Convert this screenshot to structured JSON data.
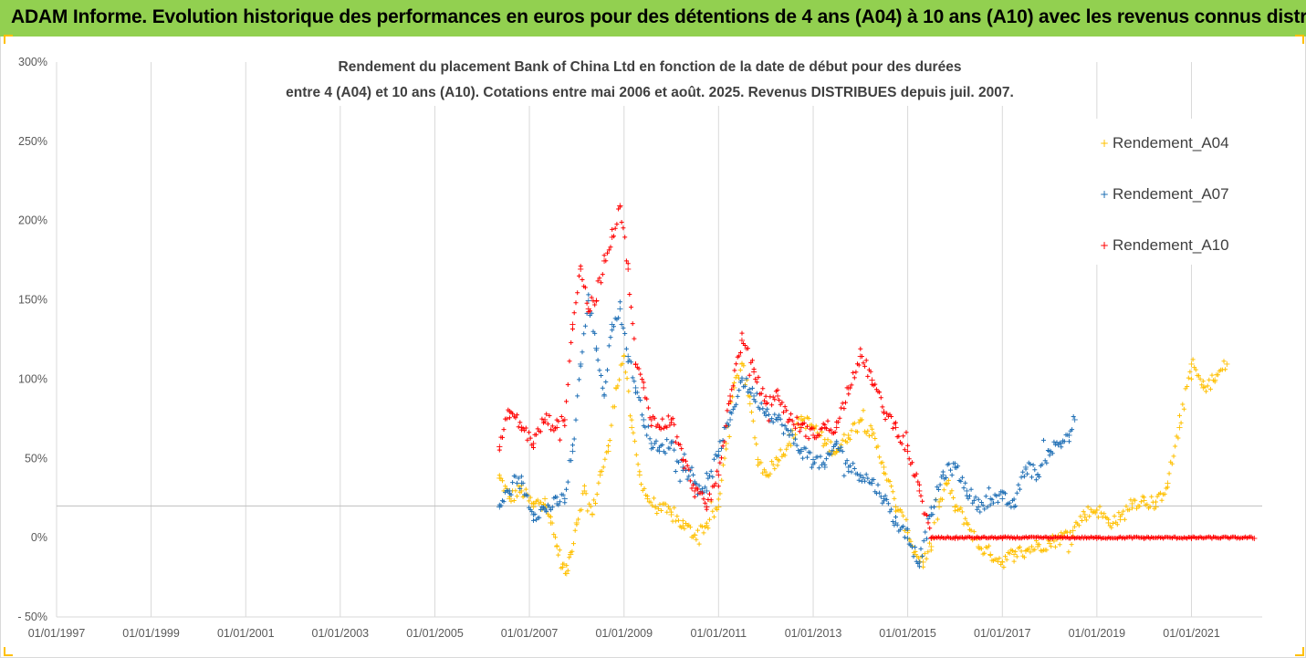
{
  "header": {
    "title": "ADAM Informe. Evolution historique des performances en euros pour des détentions de 4 ans (A04) à 10 ans (A10) avec les revenus connus distribués"
  },
  "colors": {
    "banner": "#92d050",
    "A04": "#ffc000",
    "A07": "#1f6fb5",
    "A10": "#ff0000",
    "grid": "#d9d9d9",
    "reference_line": "#bfbfbf"
  },
  "chart_data": {
    "type": "scatter",
    "title_lines": [
      "Rendement du placement Bank of China Ltd en fonction de la date de début pour des durées",
      "entre 4 (A04) et 10 ans (A10). Cotations entre mai 2006 et août. 2025. Revenus DISTRIBUES depuis juil. 2007."
    ],
    "x_axis": {
      "type": "date",
      "min": "1997-01-01",
      "max": "2022-07-01",
      "tick_labels": [
        "01/01/1997",
        "01/01/1999",
        "01/01/2001",
        "01/01/2003",
        "01/01/2005",
        "01/01/2007",
        "01/01/2009",
        "01/01/2011",
        "01/01/2013",
        "01/01/2015",
        "01/01/2017",
        "01/01/2019",
        "01/01/2021"
      ],
      "vertical_grid": true
    },
    "y_axis": {
      "unit": "percent",
      "min": -50,
      "max": 300,
      "tick_labels": [
        "- 50%",
        "0%",
        "50%",
        "100%",
        "150%",
        "200%",
        "250%",
        "300%"
      ],
      "tick_values": [
        -50,
        0,
        50,
        100,
        150,
        200,
        250,
        300
      ],
      "horizontal_grid": false
    },
    "reference_line_y": 20,
    "marker": "+",
    "legend": {
      "position": "right",
      "entries": [
        "Rendement_A04",
        "Rendement_A07",
        "Rendement_A10"
      ]
    },
    "series": [
      {
        "name": "Rendement_A04",
        "color_key": "A04",
        "points": [
          [
            "2006-05-15",
            38
          ],
          [
            "2006-08-01",
            25
          ],
          [
            "2006-11-01",
            30
          ],
          [
            "2007-02-01",
            20
          ],
          [
            "2007-05-01",
            25
          ],
          [
            "2007-06-15",
            10
          ],
          [
            "2007-08-01",
            -5
          ],
          [
            "2007-09-15",
            -18
          ],
          [
            "2007-10-15",
            -22
          ],
          [
            "2007-11-15",
            -10
          ],
          [
            "2008-01-01",
            10
          ],
          [
            "2008-03-01",
            30
          ],
          [
            "2008-05-01",
            15
          ],
          [
            "2008-07-01",
            40
          ],
          [
            "2008-09-01",
            55
          ],
          [
            "2008-11-01",
            95
          ],
          [
            "2009-01-01",
            115
          ],
          [
            "2009-03-01",
            70
          ],
          [
            "2009-05-01",
            40
          ],
          [
            "2009-07-01",
            25
          ],
          [
            "2009-09-01",
            20
          ],
          [
            "2010-01-01",
            15
          ],
          [
            "2010-04-01",
            8
          ],
          [
            "2010-07-01",
            2
          ],
          [
            "2010-10-01",
            8
          ],
          [
            "2011-01-01",
            20
          ],
          [
            "2011-03-01",
            60
          ],
          [
            "2011-05-01",
            95
          ],
          [
            "2011-07-01",
            110
          ],
          [
            "2011-09-01",
            85
          ],
          [
            "2011-11-01",
            50
          ],
          [
            "2012-01-01",
            40
          ],
          [
            "2012-04-01",
            50
          ],
          [
            "2012-07-01",
            60
          ],
          [
            "2012-10-01",
            75
          ],
          [
            "2013-01-01",
            70
          ],
          [
            "2013-04-01",
            60
          ],
          [
            "2013-07-01",
            55
          ],
          [
            "2013-10-01",
            65
          ],
          [
            "2014-01-01",
            75
          ],
          [
            "2014-04-01",
            65
          ],
          [
            "2014-07-01",
            45
          ],
          [
            "2014-10-01",
            20
          ],
          [
            "2015-01-01",
            5
          ],
          [
            "2015-03-01",
            -10
          ],
          [
            "2015-05-01",
            -15
          ],
          [
            "2015-07-01",
            -5
          ],
          [
            "2015-09-01",
            20
          ],
          [
            "2015-11-01",
            35
          ],
          [
            "2016-01-01",
            20
          ],
          [
            "2016-04-01",
            10
          ],
          [
            "2016-07-01",
            -5
          ],
          [
            "2016-10-01",
            -10
          ],
          [
            "2017-01-01",
            -15
          ],
          [
            "2017-04-01",
            -10
          ],
          [
            "2017-07-01",
            -8
          ],
          [
            "2017-10-01",
            -5
          ],
          [
            "2018-01-01",
            -3
          ],
          [
            "2018-04-01",
            0
          ],
          [
            "2018-07-01",
            5
          ],
          [
            "2018-10-01",
            15
          ],
          [
            "2019-01-01",
            18
          ],
          [
            "2019-04-01",
            10
          ],
          [
            "2019-07-01",
            12
          ],
          [
            "2019-10-01",
            22
          ],
          [
            "2020-01-01",
            24
          ],
          [
            "2020-04-01",
            20
          ],
          [
            "2020-07-01",
            35
          ],
          [
            "2020-10-01",
            70
          ],
          [
            "2021-01-01",
            110
          ],
          [
            "2021-04-01",
            95
          ],
          [
            "2021-07-01",
            100
          ],
          [
            "2021-10-01",
            110
          ]
        ]
      },
      {
        "name": "Rendement_A07",
        "color_key": "A07",
        "points": [
          [
            "2006-05-15",
            20
          ],
          [
            "2006-08-01",
            30
          ],
          [
            "2006-11-01",
            35
          ],
          [
            "2007-02-01",
            15
          ],
          [
            "2007-05-01",
            18
          ],
          [
            "2007-08-01",
            22
          ],
          [
            "2007-10-01",
            25
          ],
          [
            "2007-12-01",
            55
          ],
          [
            "2008-02-01",
            110
          ],
          [
            "2008-04-01",
            150
          ],
          [
            "2008-06-01",
            120
          ],
          [
            "2008-08-01",
            90
          ],
          [
            "2008-10-01",
            135
          ],
          [
            "2008-12-01",
            145
          ],
          [
            "2009-02-01",
            115
          ],
          [
            "2009-04-01",
            95
          ],
          [
            "2009-06-01",
            75
          ],
          [
            "2009-08-01",
            60
          ],
          [
            "2009-10-01",
            55
          ],
          [
            "2010-01-01",
            60
          ],
          [
            "2010-04-01",
            45
          ],
          [
            "2010-07-01",
            35
          ],
          [
            "2010-10-01",
            30
          ],
          [
            "2011-01-01",
            55
          ],
          [
            "2011-04-01",
            75
          ],
          [
            "2011-07-01",
            100
          ],
          [
            "2011-10-01",
            90
          ],
          [
            "2012-01-01",
            80
          ],
          [
            "2012-04-01",
            75
          ],
          [
            "2012-07-01",
            65
          ],
          [
            "2012-10-01",
            55
          ],
          [
            "2013-01-01",
            50
          ],
          [
            "2013-04-01",
            45
          ],
          [
            "2013-07-01",
            60
          ],
          [
            "2013-10-01",
            45
          ],
          [
            "2014-01-01",
            40
          ],
          [
            "2014-04-01",
            35
          ],
          [
            "2014-07-01",
            25
          ],
          [
            "2014-10-01",
            10
          ],
          [
            "2015-01-01",
            0
          ],
          [
            "2015-04-01",
            -15
          ],
          [
            "2015-07-01",
            15
          ],
          [
            "2015-10-01",
            40
          ],
          [
            "2016-01-01",
            45
          ],
          [
            "2016-04-01",
            30
          ],
          [
            "2016-07-01",
            20
          ],
          [
            "2016-10-01",
            25
          ],
          [
            "2017-01-01",
            25
          ],
          [
            "2017-04-01",
            20
          ],
          [
            "2017-07-01",
            45
          ],
          [
            "2017-10-01",
            40
          ],
          [
            "2018-01-01",
            55
          ],
          [
            "2018-04-01",
            60
          ],
          [
            "2018-06-01",
            65
          ],
          [
            "2018-07-15",
            75
          ]
        ]
      },
      {
        "name": "Rendement_A10",
        "color_key": "A10",
        "points": [
          [
            "2006-05-15",
            58
          ],
          [
            "2006-08-01",
            80
          ],
          [
            "2006-11-01",
            70
          ],
          [
            "2007-02-01",
            60
          ],
          [
            "2007-05-01",
            75
          ],
          [
            "2007-08-01",
            70
          ],
          [
            "2007-10-01",
            75
          ],
          [
            "2007-12-01",
            135
          ],
          [
            "2008-02-01",
            170
          ],
          [
            "2008-04-01",
            145
          ],
          [
            "2008-06-01",
            150
          ],
          [
            "2008-08-01",
            175
          ],
          [
            "2008-10-01",
            190
          ],
          [
            "2008-12-01",
            210
          ],
          [
            "2009-02-01",
            170
          ],
          [
            "2009-04-01",
            110
          ],
          [
            "2009-06-01",
            95
          ],
          [
            "2009-08-01",
            75
          ],
          [
            "2009-10-01",
            70
          ],
          [
            "2010-01-01",
            75
          ],
          [
            "2010-04-01",
            50
          ],
          [
            "2010-07-01",
            30
          ],
          [
            "2010-10-01",
            20
          ],
          [
            "2011-01-01",
            40
          ],
          [
            "2011-04-01",
            90
          ],
          [
            "2011-07-01",
            125
          ],
          [
            "2011-10-01",
            105
          ],
          [
            "2012-01-01",
            85
          ],
          [
            "2012-04-01",
            90
          ],
          [
            "2012-07-01",
            75
          ],
          [
            "2012-10-01",
            70
          ],
          [
            "2013-01-01",
            65
          ],
          [
            "2013-04-01",
            70
          ],
          [
            "2013-07-01",
            70
          ],
          [
            "2013-10-01",
            95
          ],
          [
            "2014-01-01",
            115
          ],
          [
            "2014-04-01",
            100
          ],
          [
            "2014-07-01",
            80
          ],
          [
            "2014-10-01",
            70
          ],
          [
            "2015-01-01",
            55
          ],
          [
            "2015-04-01",
            30
          ],
          [
            "2015-07-01",
            0
          ],
          [
            "2016-01-01",
            0
          ],
          [
            "2017-01-01",
            0
          ],
          [
            "2018-01-01",
            0
          ],
          [
            "2019-01-01",
            0
          ],
          [
            "2020-01-01",
            0
          ],
          [
            "2021-01-01",
            0
          ],
          [
            "2022-05-01",
            0
          ]
        ]
      }
    ]
  }
}
